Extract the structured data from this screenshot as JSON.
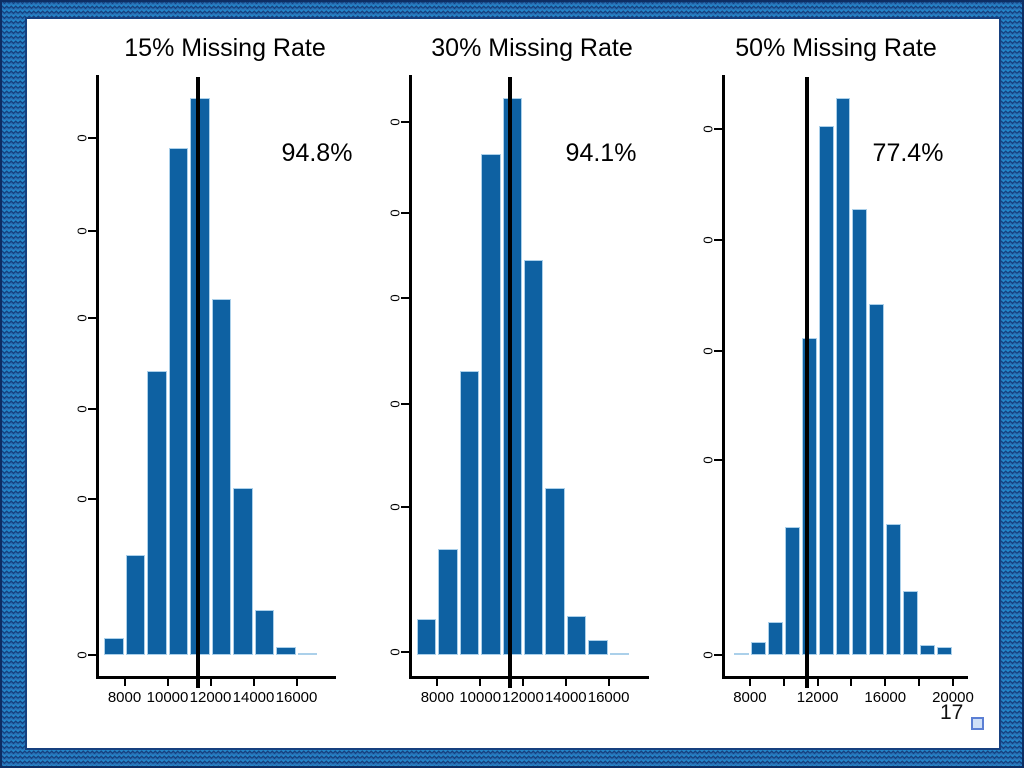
{
  "slide": {
    "page_number": "17",
    "colors": {
      "bar_fill": "#0e61a2",
      "bar_border": "#abd0ea",
      "reference_line": "#000000",
      "border_wave_base": "#2486c9",
      "border_wave_dark": "#16407f",
      "frame_outline": "#0d2e63"
    }
  },
  "chart_data": [
    {
      "type": "bar",
      "subtype": "histogram",
      "title": "15% Missing Rate",
      "annotation": "94.8%",
      "vline_x": 11400,
      "xlim": [
        7000,
        17000
      ],
      "bin_edges": [
        7000,
        8000,
        9000,
        10000,
        11000,
        12000,
        13000,
        14000,
        15000,
        16000,
        17000
      ],
      "heights_relative": [
        0.03,
        0.18,
        0.51,
        0.91,
        1.0,
        0.64,
        0.3,
        0.08,
        0.015,
        0.004
      ],
      "xticks": [
        {
          "value": 8000,
          "label": "8000"
        },
        {
          "value": 10000,
          "label": "10000"
        },
        {
          "value": 12000,
          "label": "12000"
        },
        {
          "value": 14000,
          "label": "14000"
        },
        {
          "value": 16000,
          "label": "16000"
        }
      ],
      "ytick_labels": [
        "0",
        "0",
        "0",
        "0",
        "0",
        "0"
      ],
      "grid": false,
      "legend": "none"
    },
    {
      "type": "bar",
      "subtype": "histogram",
      "title": "30% Missing Rate",
      "annotation": "94.1%",
      "vline_x": 11400,
      "xlim": [
        7000,
        17000
      ],
      "bin_edges": [
        7000,
        8000,
        9000,
        10000,
        11000,
        12000,
        13000,
        14000,
        15000,
        16000,
        17000
      ],
      "heights_relative": [
        0.065,
        0.19,
        0.51,
        0.9,
        1.0,
        0.71,
        0.3,
        0.07,
        0.027,
        0.004
      ],
      "xticks": [
        {
          "value": 8000,
          "label": "8000"
        },
        {
          "value": 10000,
          "label": "10000"
        },
        {
          "value": 12000,
          "label": "12000"
        },
        {
          "value": 14000,
          "label": "14000"
        },
        {
          "value": 16000,
          "label": "16000"
        }
      ],
      "ytick_labels": [
        "0",
        "0",
        "0",
        "0",
        "0",
        "0"
      ],
      "grid": false,
      "legend": "none"
    },
    {
      "type": "bar",
      "subtype": "histogram",
      "title": "50% Missing Rate",
      "annotation": "77.4%",
      "vline_x": 11400,
      "xlim": [
        7000,
        20000
      ],
      "bin_edges": [
        7000,
        8000,
        9000,
        10000,
        11000,
        12000,
        13000,
        14000,
        15000,
        16000,
        17000,
        18000,
        19000,
        20000
      ],
      "heights_relative": [
        0.004,
        0.023,
        0.06,
        0.23,
        0.57,
        0.95,
        1.0,
        0.8,
        0.63,
        0.235,
        0.115,
        0.018,
        0.014
      ],
      "xticks": [
        {
          "value": 8000,
          "label": "8000"
        },
        {
          "value": 10000,
          "label": ""
        },
        {
          "value": 12000,
          "label": "12000"
        },
        {
          "value": 14000,
          "label": ""
        },
        {
          "value": 16000,
          "label": "16000"
        },
        {
          "value": 18000,
          "label": ""
        },
        {
          "value": 20000,
          "label": "20000"
        }
      ],
      "ytick_labels": [
        "0",
        "0",
        "0",
        "0",
        "0"
      ],
      "grid": false,
      "legend": "none"
    }
  ]
}
